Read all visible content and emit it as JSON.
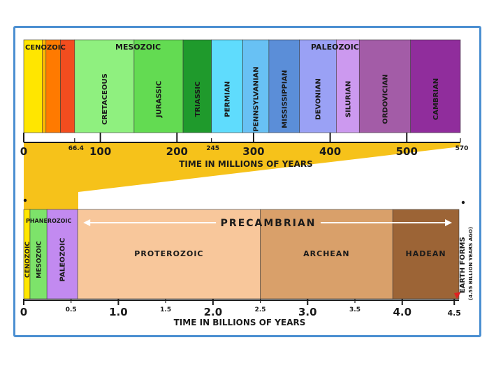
{
  "colors": {
    "frame": "#4b8fd1",
    "wedge": "#f6c21a",
    "text": "#1a1a1a",
    "arrow": "#ffffff",
    "marker": "#e02020"
  },
  "top": {
    "era_labels": [
      "CENOZOIC",
      "MESOZOIC",
      "PALEOZOIC"
    ],
    "periods": [
      {
        "name": "",
        "start": 0,
        "end": 24,
        "color": "#ffe600"
      },
      {
        "name": "",
        "start": 24,
        "end": 29,
        "color": "#ffb800"
      },
      {
        "name": "",
        "start": 29,
        "end": 48,
        "color": "#ff7a00"
      },
      {
        "name": "",
        "start": 48,
        "end": 66.4,
        "color": "#f24d1f"
      },
      {
        "name": "CRETACEOUS",
        "start": 66.4,
        "end": 144,
        "color": "#8ff07f"
      },
      {
        "name": "JURASSIC",
        "start": 144,
        "end": 208,
        "color": "#63db52"
      },
      {
        "name": "TRIASSIC",
        "start": 208,
        "end": 245,
        "color": "#1f9a2c"
      },
      {
        "name": "PERMIAN",
        "start": 245,
        "end": 286,
        "color": "#5fdcfd"
      },
      {
        "name": "PENNSYLVANIAN",
        "start": 286,
        "end": 320,
        "color": "#68c1f4"
      },
      {
        "name": "MISSISSIPPIAN",
        "start": 320,
        "end": 360,
        "color": "#5b8ed8"
      },
      {
        "name": "DEVONIAN",
        "start": 360,
        "end": 408,
        "color": "#9aa1f5"
      },
      {
        "name": "SILURIAN",
        "start": 408,
        "end": 438,
        "color": "#cc99ef"
      },
      {
        "name": "ORDOVICIAN",
        "start": 438,
        "end": 505,
        "color": "#a35ca7"
      },
      {
        "name": "CAMBRIAN",
        "start": 505,
        "end": 570,
        "color": "#902d9c"
      }
    ],
    "major_ticks": [
      {
        "label": "0",
        "value": 0
      },
      {
        "label": "100",
        "value": 100
      },
      {
        "label": "200",
        "value": 200
      },
      {
        "label": "300",
        "value": 300
      },
      {
        "label": "400",
        "value": 400
      },
      {
        "label": "500",
        "value": 500
      }
    ],
    "minor_ticks": [
      {
        "label": "66.4",
        "value": 66.4
      },
      {
        "label": "245",
        "value": 245
      },
      {
        "label": "570",
        "value": 570
      }
    ],
    "axis_title": "TIME IN MILLIONS OF YEARS",
    "max": 570
  },
  "bottom": {
    "segments": [
      {
        "name": "CENOZOIC",
        "start": 0,
        "end": 0.066,
        "color": "#ffe600"
      },
      {
        "name": "MESOZOIC",
        "start": 0.066,
        "end": 0.245,
        "color": "#7de36a"
      },
      {
        "name": "PALEOZOIC",
        "start": 0.245,
        "end": 0.57,
        "color": "#c28af0"
      },
      {
        "name": "PROTEROZOIC",
        "start": 0.57,
        "end": 2.5,
        "color": "#f8c79b"
      },
      {
        "name": "ARCHEAN",
        "start": 2.5,
        "end": 3.9,
        "color": "#d9a06a"
      },
      {
        "name": "HADEAN",
        "start": 3.9,
        "end": 4.6,
        "color": "#9c6436"
      }
    ],
    "eon_label": "PHANEROZOIC",
    "precambrian_label": "PRECAMBRIAN",
    "major_ticks": [
      {
        "label": "0",
        "value": 0
      },
      {
        "label": "1.0",
        "value": 1.0
      },
      {
        "label": "2.0",
        "value": 2.0
      },
      {
        "label": "3.0",
        "value": 3.0
      },
      {
        "label": "4.0",
        "value": 4.0
      },
      {
        "label": "4.5",
        "value": 4.55
      }
    ],
    "minor_ticks": [
      {
        "label": "0.5",
        "value": 0.5
      },
      {
        "label": "1.5",
        "value": 1.5
      },
      {
        "label": "2.5",
        "value": 2.5
      },
      {
        "label": "3.5",
        "value": 3.5
      }
    ],
    "axis_title": "TIME IN BILLIONS OF YEARS",
    "earth_label": "EARTH FORMS",
    "earth_sublabel": "(4.55 BILLION YEARS AGO)",
    "max": 4.6
  }
}
